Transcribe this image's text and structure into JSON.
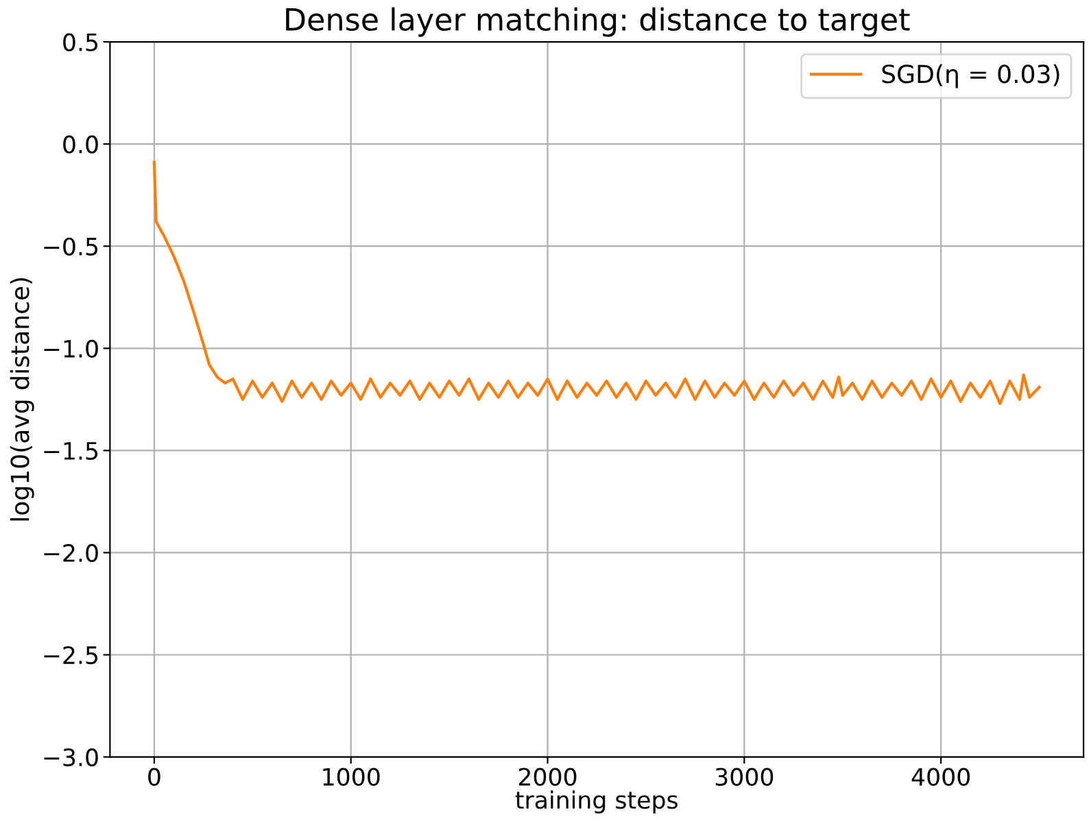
{
  "chart_data": {
    "type": "line",
    "title": "Dense layer matching: distance to target",
    "xlabel": "training steps",
    "ylabel": "log10(avg distance)",
    "xlim": [
      -225,
      4725
    ],
    "ylim": [
      -3.0,
      0.5
    ],
    "xticks": [
      0,
      1000,
      2000,
      3000,
      4000
    ],
    "yticks": [
      {
        "value": -3.0,
        "label": "−3.0"
      },
      {
        "value": -2.5,
        "label": "−2.5"
      },
      {
        "value": -2.0,
        "label": "−2.0"
      },
      {
        "value": -1.5,
        "label": "−1.5"
      },
      {
        "value": -1.0,
        "label": "−1.0"
      },
      {
        "value": -0.5,
        "label": "−0.5"
      },
      {
        "value": 0.0,
        "label": "0.0"
      },
      {
        "value": 0.5,
        "label": "0.5"
      }
    ],
    "grid": true,
    "legend": "top right",
    "line_style": "solid",
    "marker": "none",
    "series": [
      {
        "name": "SGD(η = 0.03)",
        "color": "#ff7f0e",
        "x": [
          0,
          10,
          50,
          100,
          150,
          200,
          250,
          280,
          320,
          360,
          400,
          450,
          500,
          550,
          600,
          650,
          700,
          750,
          800,
          850,
          900,
          950,
          1000,
          1050,
          1100,
          1150,
          1200,
          1250,
          1300,
          1350,
          1400,
          1450,
          1500,
          1550,
          1600,
          1650,
          1700,
          1750,
          1800,
          1850,
          1900,
          1950,
          2000,
          2050,
          2100,
          2150,
          2200,
          2250,
          2300,
          2350,
          2400,
          2450,
          2500,
          2550,
          2600,
          2650,
          2700,
          2750,
          2800,
          2850,
          2900,
          2950,
          3000,
          3050,
          3100,
          3150,
          3200,
          3250,
          3300,
          3350,
          3400,
          3450,
          3480,
          3500,
          3550,
          3600,
          3650,
          3700,
          3750,
          3800,
          3850,
          3900,
          3950,
          4000,
          4050,
          4100,
          4150,
          4200,
          4250,
          4300,
          4350,
          4400,
          4420,
          4450,
          4500
        ],
        "values": [
          -0.09,
          -0.38,
          -0.45,
          -0.55,
          -0.67,
          -0.82,
          -0.98,
          -1.08,
          -1.14,
          -1.17,
          -1.15,
          -1.25,
          -1.16,
          -1.24,
          -1.17,
          -1.26,
          -1.16,
          -1.24,
          -1.17,
          -1.25,
          -1.16,
          -1.23,
          -1.17,
          -1.25,
          -1.15,
          -1.24,
          -1.17,
          -1.23,
          -1.16,
          -1.25,
          -1.17,
          -1.24,
          -1.16,
          -1.23,
          -1.15,
          -1.25,
          -1.17,
          -1.24,
          -1.16,
          -1.24,
          -1.17,
          -1.23,
          -1.15,
          -1.25,
          -1.16,
          -1.24,
          -1.17,
          -1.23,
          -1.16,
          -1.24,
          -1.17,
          -1.25,
          -1.16,
          -1.23,
          -1.17,
          -1.24,
          -1.15,
          -1.25,
          -1.16,
          -1.24,
          -1.17,
          -1.23,
          -1.16,
          -1.25,
          -1.17,
          -1.24,
          -1.16,
          -1.23,
          -1.17,
          -1.25,
          -1.16,
          -1.24,
          -1.14,
          -1.23,
          -1.17,
          -1.25,
          -1.16,
          -1.24,
          -1.17,
          -1.23,
          -1.16,
          -1.25,
          -1.15,
          -1.24,
          -1.16,
          -1.26,
          -1.17,
          -1.24,
          -1.16,
          -1.27,
          -1.16,
          -1.25,
          -1.13,
          -1.24,
          -1.19
        ]
      }
    ]
  }
}
